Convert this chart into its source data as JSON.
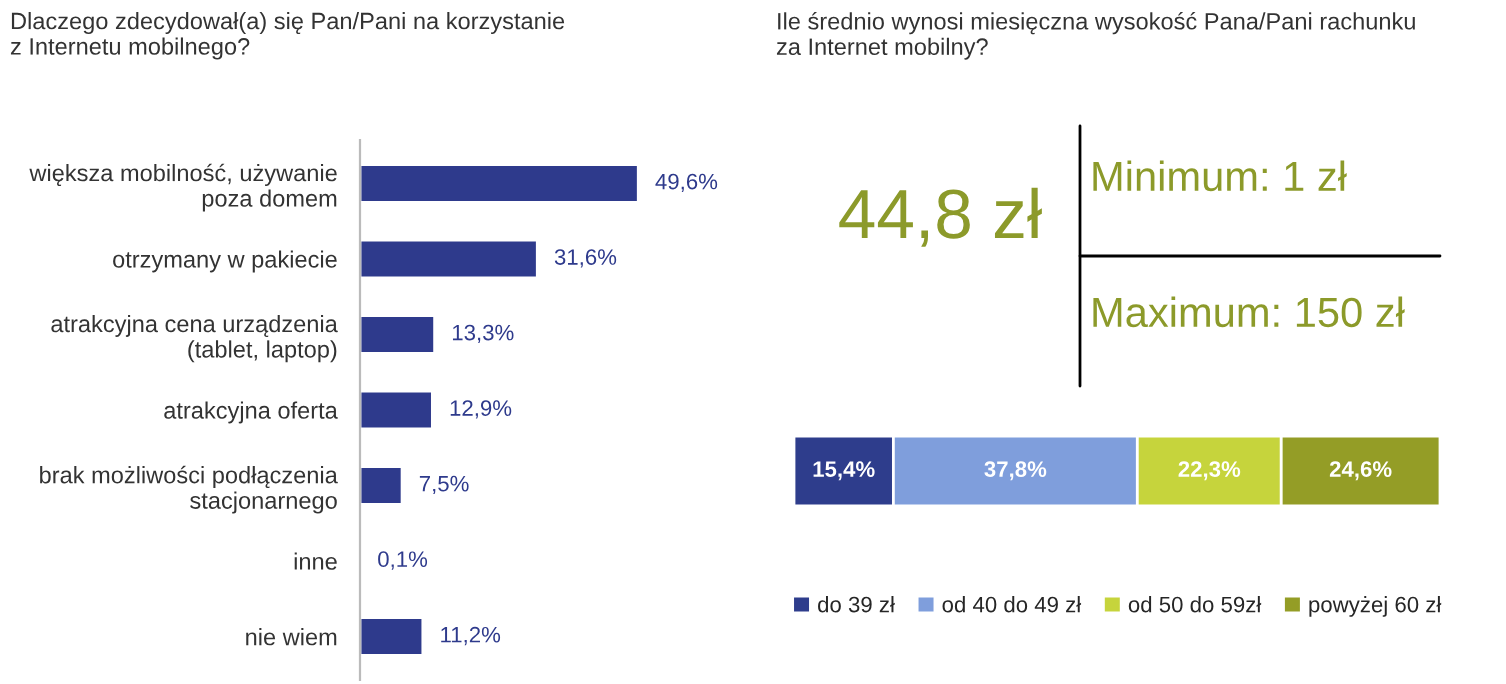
{
  "chart_data": [
    {
      "type": "bar",
      "orientation": "horizontal",
      "title": "Dlaczego zdecydował(a) się Pan/Pani na korzystanie\nz Internetu mobilnego?",
      "categories": [
        "większa mobilność, używanie\npoza domem",
        "otrzymany w pakiecie",
        "atrakcyjna cena urządzenia\n(tablet, laptop)",
        "atrakcyjna oferta",
        "brak możliwości podłączenia\nstacjonarnego",
        "inne",
        "nie wiem"
      ],
      "values": [
        49.6,
        31.6,
        13.3,
        12.9,
        7.5,
        0.1,
        11.2
      ],
      "value_labels": [
        "49,6%",
        "31,6%",
        "13,3%",
        "12,9%",
        "7,5%",
        "0,1%",
        "11,2%"
      ],
      "color": "#2e3a8c",
      "tick_labels": "y",
      "grid": false,
      "legend": false
    },
    {
      "type": "other",
      "title": "Ile średnio wynosi miesięczna wysokość Pana/Pani rachunku\nza Internet mobilny?",
      "annotations": [
        "44,8 zł",
        "Minimum: 1 zł",
        "Maximum: 150 zł"
      ]
    },
    {
      "type": "bar",
      "orientation": "horizontal",
      "stacked": true,
      "categories": [
        null
      ],
      "tick_labels": false,
      "grid": false,
      "legend": "bottom",
      "series": [
        {
          "name": "do 39 zł",
          "color": "#2e3d8c",
          "values": [
            15.4
          ],
          "value_labels": [
            "15,4%"
          ]
        },
        {
          "name": "od 40 do 49 zł",
          "color": "#7f9edc",
          "values": [
            37.8
          ],
          "value_labels": [
            "37,8%"
          ]
        },
        {
          "name": "od 50 do 59zł",
          "color": "#c6d43c",
          "values": [
            22.3
          ],
          "value_labels": [
            "22,3%"
          ]
        },
        {
          "name": "powyżej 60 zł",
          "color": "#949d26",
          "values": [
            24.6
          ],
          "value_labels": [
            "24,6%"
          ]
        }
      ]
    }
  ]
}
